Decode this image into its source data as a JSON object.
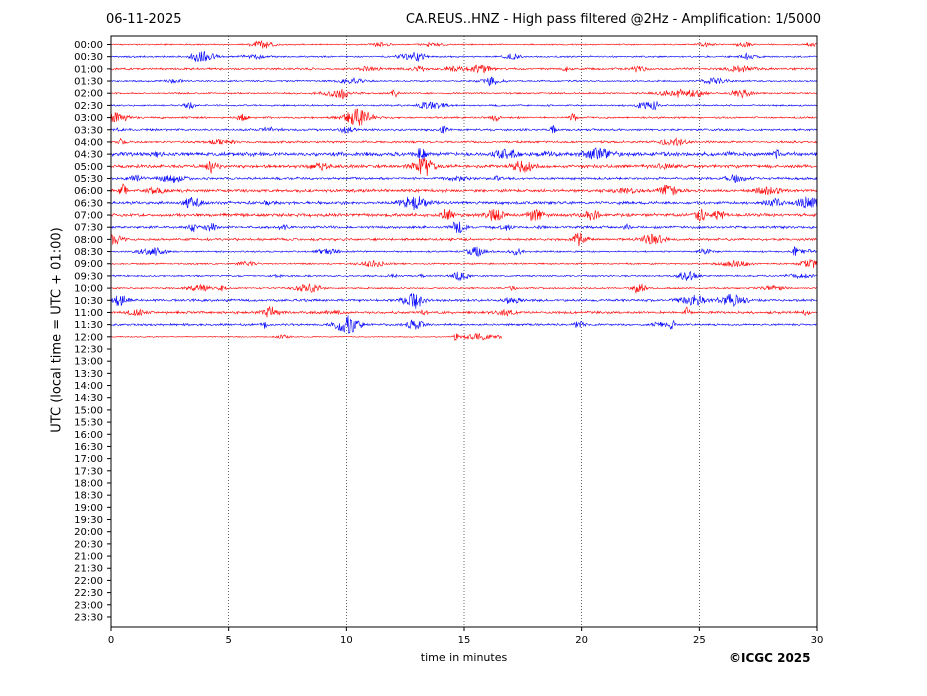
{
  "header": {
    "date": "06-11-2025",
    "title": "CA.REUS..HNZ - High pass filtered @2Hz - Amplification: 1/5000"
  },
  "footer": {
    "copyright": "©ICGC 2025"
  },
  "chart_data": {
    "type": "line",
    "title": "CA.REUS..HNZ - High pass filtered @2Hz - Amplification: 1/5000",
    "xlabel": "time in minutes",
    "ylabel": "UTC (local time = UTC + 01:00)",
    "xlim": [
      0,
      30
    ],
    "x_ticks": [
      0,
      5,
      10,
      15,
      20,
      25,
      30
    ],
    "grid": "vertical dotted lines at 5, 10, 15, 20, 25",
    "y_ticks": [
      "00:00",
      "00:30",
      "01:00",
      "01:30",
      "02:00",
      "02:30",
      "03:00",
      "03:30",
      "04:00",
      "04:30",
      "05:00",
      "05:30",
      "06:00",
      "06:30",
      "07:00",
      "07:30",
      "08:00",
      "08:30",
      "09:00",
      "09:30",
      "10:00",
      "10:30",
      "11:00",
      "11:30",
      "12:00",
      "12:30",
      "13:00",
      "13:30",
      "14:00",
      "14:30",
      "15:00",
      "15:30",
      "16:00",
      "16:30",
      "17:00",
      "17:30",
      "18:00",
      "18:30",
      "19:00",
      "19:30",
      "20:00",
      "20:30",
      "21:00",
      "21:30",
      "22:00",
      "22:30",
      "23:00",
      "23:30"
    ],
    "trace_colors": [
      "#ff0000",
      "#0000ff"
    ],
    "traces": [
      {
        "row": "00:00",
        "end_minute": 30,
        "amplitude": 0.25
      },
      {
        "row": "00:30",
        "end_minute": 30,
        "amplitude": 0.3
      },
      {
        "row": "01:00",
        "end_minute": 30,
        "amplitude": 0.4
      },
      {
        "row": "01:30",
        "end_minute": 30,
        "amplitude": 0.3
      },
      {
        "row": "02:00",
        "end_minute": 30,
        "amplitude": 0.3
      },
      {
        "row": "02:30",
        "end_minute": 30,
        "amplitude": 0.3
      },
      {
        "row": "03:00",
        "end_minute": 30,
        "amplitude": 0.35
      },
      {
        "row": "03:30",
        "end_minute": 30,
        "amplitude": 0.4
      },
      {
        "row": "04:00",
        "end_minute": 30,
        "amplitude": 0.4
      },
      {
        "row": "04:30",
        "end_minute": 30,
        "amplitude": 0.7
      },
      {
        "row": "05:00",
        "end_minute": 30,
        "amplitude": 0.6
      },
      {
        "row": "05:30",
        "end_minute": 30,
        "amplitude": 0.45
      },
      {
        "row": "06:00",
        "end_minute": 30,
        "amplitude": 0.55
      },
      {
        "row": "06:30",
        "end_minute": 30,
        "amplitude": 0.55
      },
      {
        "row": "07:00",
        "end_minute": 30,
        "amplitude": 0.6
      },
      {
        "row": "07:30",
        "end_minute": 30,
        "amplitude": 0.45
      },
      {
        "row": "08:00",
        "end_minute": 30,
        "amplitude": 0.45
      },
      {
        "row": "08:30",
        "end_minute": 30,
        "amplitude": 0.3
      },
      {
        "row": "09:00",
        "end_minute": 30,
        "amplitude": 0.3
      },
      {
        "row": "09:30",
        "end_minute": 30,
        "amplitude": 0.3
      },
      {
        "row": "10:00",
        "end_minute": 30,
        "amplitude": 0.3
      },
      {
        "row": "10:30",
        "end_minute": 30,
        "amplitude": 0.45
      },
      {
        "row": "11:00",
        "end_minute": 30,
        "amplitude": 0.45
      },
      {
        "row": "11:30",
        "end_minute": 30,
        "amplitude": 0.4
      },
      {
        "row": "12:00",
        "end_minute": 16.6,
        "amplitude": 0.2
      }
    ]
  }
}
